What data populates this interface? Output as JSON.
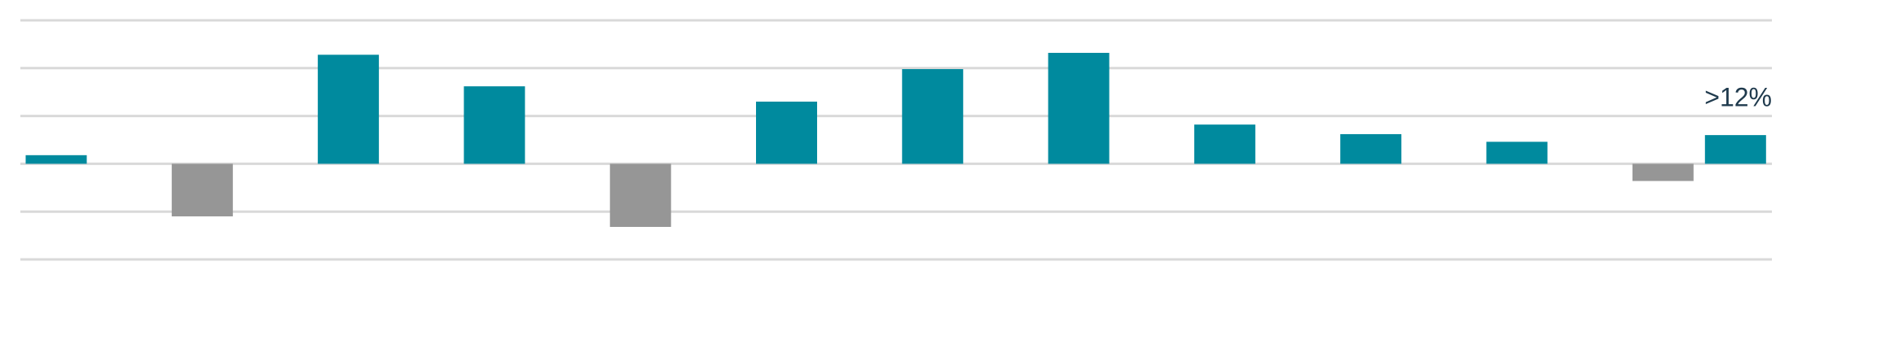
{
  "chart_data": {
    "type": "bar",
    "annotation": ">12%",
    "categories": [
      null,
      null,
      null,
      null,
      null,
      null,
      null,
      null,
      null,
      null,
      null,
      null,
      null
    ],
    "values": [
      0.9,
      -5.5,
      11.4,
      8.1,
      -6.6,
      6.5,
      9.9,
      11.6,
      4.1,
      3.1,
      2.3,
      -1.8,
      3.0
    ],
    "colors": [
      "#008a9e",
      "#969696",
      "#008a9e",
      "#008a9e",
      "#969696",
      "#008a9e",
      "#008a9e",
      "#008a9e",
      "#008a9e",
      "#008a9e",
      "#008a9e",
      "#969696",
      "#008a9e"
    ],
    "ylim": [
      -10,
      15
    ],
    "yticks": [
      -10,
      -5,
      0,
      5,
      10,
      15
    ],
    "grid": true
  }
}
